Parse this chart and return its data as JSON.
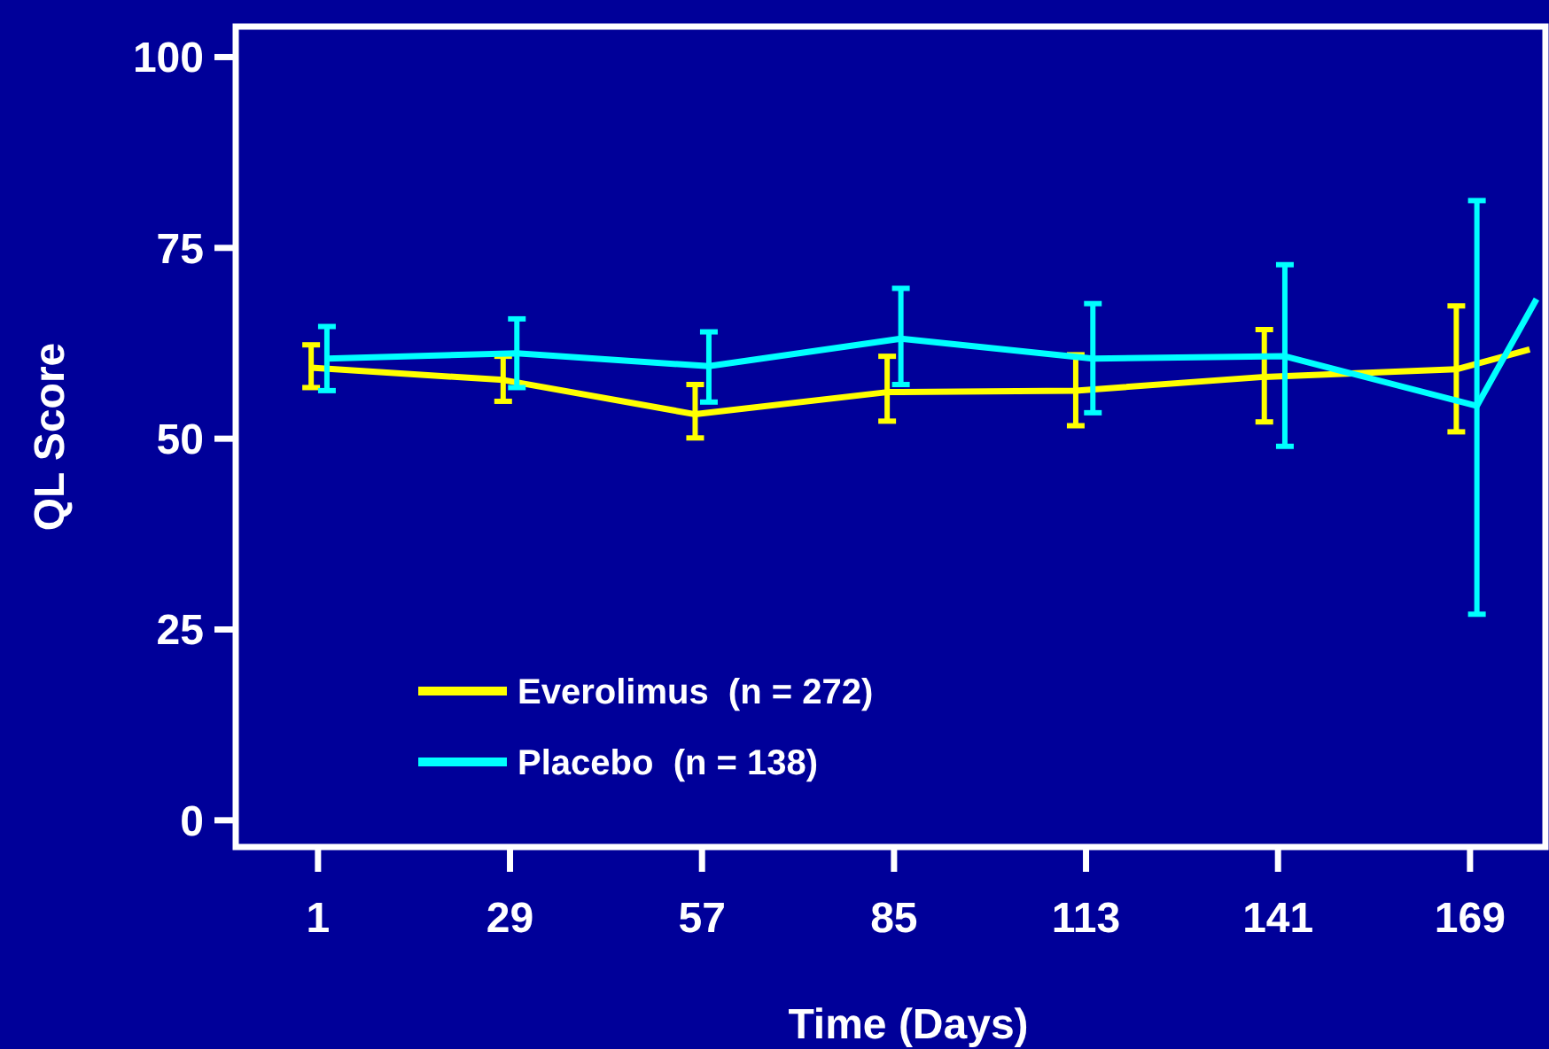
{
  "chart_data": {
    "type": "line",
    "xlabel": "Time (Days)",
    "ylabel": "QL Score",
    "xlim": [
      -11,
      180
    ],
    "ylim": [
      -3.5,
      104
    ],
    "xticks": [
      1,
      29,
      57,
      85,
      113,
      141,
      169
    ],
    "yticks": [
      0,
      25,
      50,
      75,
      100
    ],
    "legend": "bottom left",
    "grid": false,
    "marker": "none",
    "line_style": "solid",
    "series": [
      {
        "name": "Everolimus  (n = 272)",
        "color": "#ffff00",
        "x": [
          0,
          28,
          56,
          84,
          111.5,
          139,
          167,
          177.7
        ],
        "values": [
          59.3,
          57.7,
          53.2,
          56.1,
          56.3,
          58.1,
          59.1,
          61.7
        ],
        "errors": [
          [
            56.7,
            62.3
          ],
          [
            54.9,
            60.8
          ],
          [
            50.1,
            57.1
          ],
          [
            52.3,
            60.8
          ],
          [
            51.7,
            61.0
          ],
          [
            52.2,
            64.3
          ],
          [
            50.9,
            67.4
          ],
          null
        ]
      },
      {
        "name": "Placebo  (n = 138)",
        "color": "#00ffff",
        "x": [
          2.3,
          30,
          58,
          86,
          114,
          142,
          170,
          178.7
        ],
        "values": [
          60.5,
          61.2,
          59.5,
          63.1,
          60.5,
          60.8,
          54.3,
          68.3
        ],
        "errors": [
          [
            56.3,
            64.7
          ],
          [
            56.7,
            65.7
          ],
          [
            54.8,
            64.0
          ],
          [
            57.1,
            69.7
          ],
          [
            53.4,
            67.7
          ],
          [
            49.0,
            72.8
          ],
          [
            27.0,
            81.2
          ],
          null
        ]
      }
    ]
  }
}
